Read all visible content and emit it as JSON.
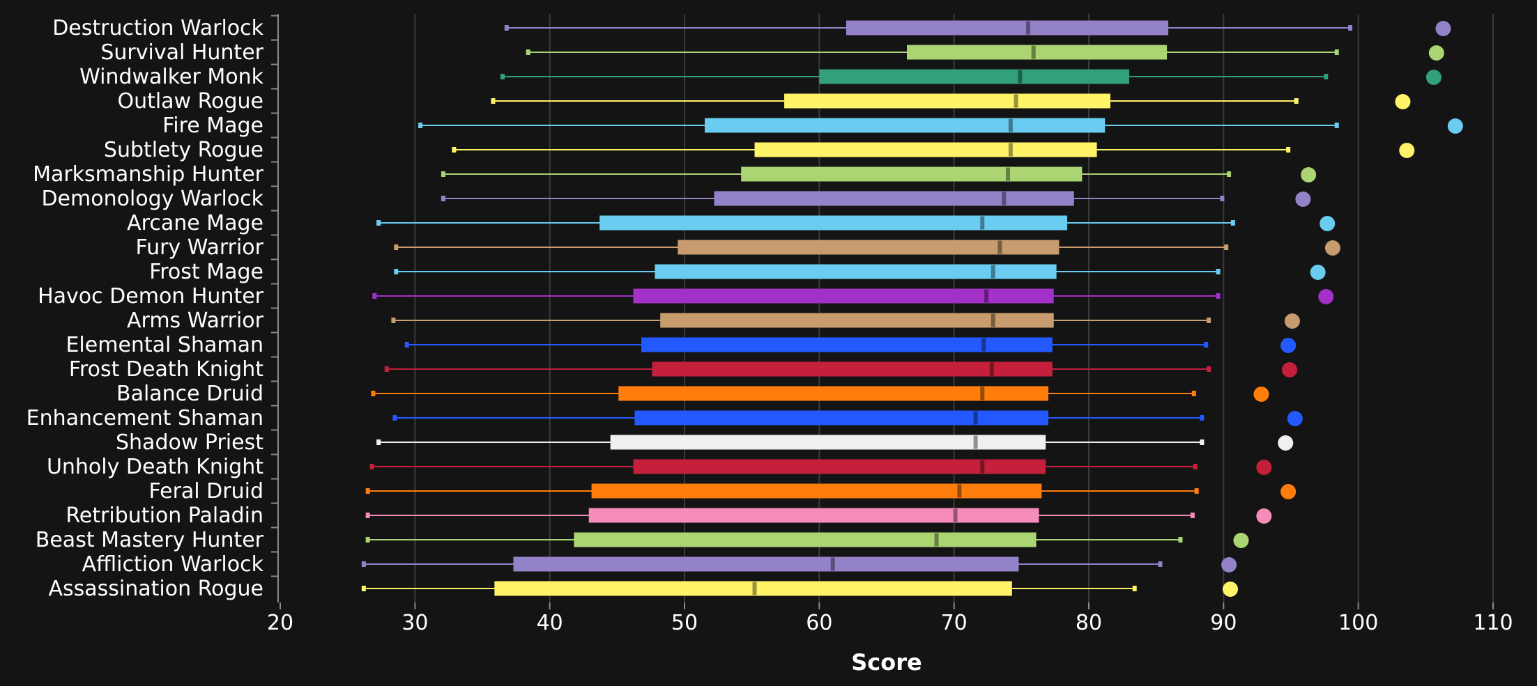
{
  "chart_data": {
    "type": "box",
    "title": "",
    "xlabel": "Score",
    "ylabel": "",
    "xlim": [
      20,
      110
    ],
    "xticks": [
      20,
      30,
      40,
      50,
      60,
      70,
      80,
      90,
      100,
      110
    ],
    "grid": "vertical",
    "legend": "none",
    "categories": [
      "Destruction Warlock",
      "Survival Hunter",
      "Windwalker Monk",
      "Outlaw Rogue",
      "Fire Mage",
      "Subtlety Rogue",
      "Marksmanship Hunter",
      "Demonology Warlock",
      "Arcane Mage",
      "Fury Warrior",
      "Frost Mage",
      "Havoc Demon Hunter",
      "Arms Warrior",
      "Elemental Shaman",
      "Frost Death Knight",
      "Balance Druid",
      "Enhancement Shaman",
      "Shadow Priest",
      "Unholy Death Knight",
      "Feral Druid",
      "Retribution Paladin",
      "Beast Mastery Hunter",
      "Affliction Warlock",
      "Assassination Rogue"
    ],
    "series": [
      {
        "min": 36.8,
        "q1": 62.0,
        "median": 75.5,
        "q3": 85.9,
        "max": 99.4,
        "outlier": 106.3,
        "color": "#9482c9"
      },
      {
        "min": 38.4,
        "q1": 66.5,
        "median": 75.9,
        "q3": 85.8,
        "max": 98.4,
        "outlier": 105.8,
        "color": "#abd473"
      },
      {
        "min": 36.5,
        "q1": 60.0,
        "median": 74.9,
        "q3": 83.0,
        "max": 97.6,
        "outlier": 105.6,
        "color": "#33a07d"
      },
      {
        "min": 35.8,
        "q1": 57.4,
        "median": 74.6,
        "q3": 81.6,
        "max": 95.4,
        "outlier": 103.3,
        "color": "#fff468"
      },
      {
        "min": 30.4,
        "q1": 51.5,
        "median": 74.2,
        "q3": 81.2,
        "max": 98.4,
        "outlier": 107.2,
        "color": "#69ccf0"
      },
      {
        "min": 32.9,
        "q1": 55.2,
        "median": 74.2,
        "q3": 80.6,
        "max": 94.8,
        "outlier": 103.6,
        "color": "#fff468"
      },
      {
        "min": 32.1,
        "q1": 54.2,
        "median": 74.0,
        "q3": 79.5,
        "max": 90.4,
        "outlier": 96.3,
        "color": "#abd473"
      },
      {
        "min": 32.1,
        "q1": 52.2,
        "median": 73.7,
        "q3": 78.9,
        "max": 89.9,
        "outlier": 95.9,
        "color": "#9482c9"
      },
      {
        "min": 27.3,
        "q1": 43.7,
        "median": 72.1,
        "q3": 78.4,
        "max": 90.7,
        "outlier": 97.7,
        "color": "#69ccf0"
      },
      {
        "min": 28.6,
        "q1": 49.5,
        "median": 73.4,
        "q3": 77.8,
        "max": 90.2,
        "outlier": 98.1,
        "color": "#c79c6e"
      },
      {
        "min": 28.6,
        "q1": 47.8,
        "median": 72.9,
        "q3": 77.6,
        "max": 89.6,
        "outlier": 97.0,
        "color": "#69ccf0"
      },
      {
        "min": 27.0,
        "q1": 46.2,
        "median": 72.4,
        "q3": 77.4,
        "max": 89.6,
        "outlier": 97.6,
        "color": "#a330c9"
      },
      {
        "min": 28.4,
        "q1": 48.2,
        "median": 72.9,
        "q3": 77.4,
        "max": 88.9,
        "outlier": 95.1,
        "color": "#c79c6e"
      },
      {
        "min": 29.4,
        "q1": 46.8,
        "median": 72.2,
        "q3": 77.3,
        "max": 88.7,
        "outlier": 94.8,
        "color": "#2459ff"
      },
      {
        "min": 27.9,
        "q1": 47.6,
        "median": 72.8,
        "q3": 77.3,
        "max": 88.9,
        "outlier": 94.9,
        "color": "#c41f3b"
      },
      {
        "min": 26.9,
        "q1": 45.1,
        "median": 72.1,
        "q3": 77.0,
        "max": 87.8,
        "outlier": 92.8,
        "color": "#ff7d0a"
      },
      {
        "min": 28.5,
        "q1": 46.3,
        "median": 71.6,
        "q3": 77.0,
        "max": 88.4,
        "outlier": 95.3,
        "color": "#2459ff"
      },
      {
        "min": 27.3,
        "q1": 44.5,
        "median": 71.6,
        "q3": 76.8,
        "max": 88.4,
        "outlier": 94.6,
        "color": "#f0f0f0"
      },
      {
        "min": 26.8,
        "q1": 46.2,
        "median": 72.1,
        "q3": 76.8,
        "max": 87.9,
        "outlier": 93.0,
        "color": "#c41f3b"
      },
      {
        "min": 26.5,
        "q1": 43.1,
        "median": 70.4,
        "q3": 76.5,
        "max": 88.0,
        "outlier": 94.8,
        "color": "#ff7d0a"
      },
      {
        "min": 26.5,
        "q1": 42.9,
        "median": 70.1,
        "q3": 76.3,
        "max": 87.7,
        "outlier": 93.0,
        "color": "#f58cba"
      },
      {
        "min": 26.5,
        "q1": 41.8,
        "median": 68.7,
        "q3": 76.1,
        "max": 86.8,
        "outlier": 91.3,
        "color": "#abd473"
      },
      {
        "min": 26.2,
        "q1": 37.3,
        "median": 61.0,
        "q3": 74.8,
        "max": 85.3,
        "outlier": 90.4,
        "color": "#9482c9"
      },
      {
        "min": 26.2,
        "q1": 35.9,
        "median": 55.2,
        "q3": 74.3,
        "max": 83.4,
        "outlier": 90.5,
        "color": "#fff468"
      }
    ]
  }
}
